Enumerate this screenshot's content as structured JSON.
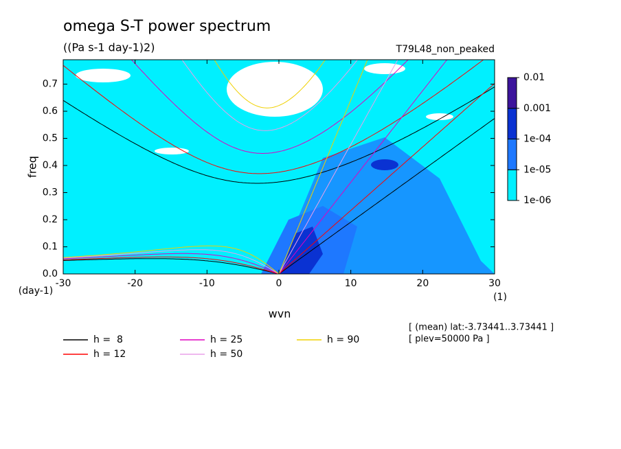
{
  "chart_data": {
    "type": "contour",
    "title": "omega S-T power spectrum",
    "subtitle": "((Pa s-1 day-1)2)",
    "dataset_label": "T79L48_non_peaked",
    "x_label": "wvn",
    "x_units": "(1)",
    "y_label": "freq",
    "y_units": "(day-1)",
    "xlim": [
      -30,
      30
    ],
    "xticks": [
      -30,
      -20,
      -10,
      0,
      10,
      20,
      30
    ],
    "ylim": [
      0,
      0.79
    ],
    "yticks": [
      {
        "value": 0,
        "label": "0.0"
      },
      0.1,
      0.2,
      0.3,
      0.4,
      0.5,
      0.6,
      0.7
    ],
    "colorbar": {
      "levels": [
        {
          "value": 1e-06,
          "label": "1e-06"
        },
        {
          "value": 1e-05,
          "label": "1e-05"
        },
        {
          "value": 0.0001,
          "label": "1e-04"
        },
        0.001,
        0.01
      ],
      "colors": [
        "#00f0ff",
        "#1e78ff",
        "#0a32d2",
        "#3c149c"
      ]
    },
    "series": [
      {
        "name": "h =  8",
        "h": 8,
        "color": "#000000"
      },
      {
        "name": "h = 12",
        "h": 12,
        "color": "#ff0000"
      },
      {
        "name": "h = 25",
        "h": 25,
        "color": "#e000c0"
      },
      {
        "name": "h = 50",
        "h": 50,
        "color": "#e8a0e8"
      },
      {
        "name": "h = 90",
        "h": 90,
        "color": "#f0d000"
      }
    ],
    "annotations": [
      "[ (mean) lat:-3.73441..3.73441 ]",
      "[ plev=50000 Pa ]"
    ]
  }
}
